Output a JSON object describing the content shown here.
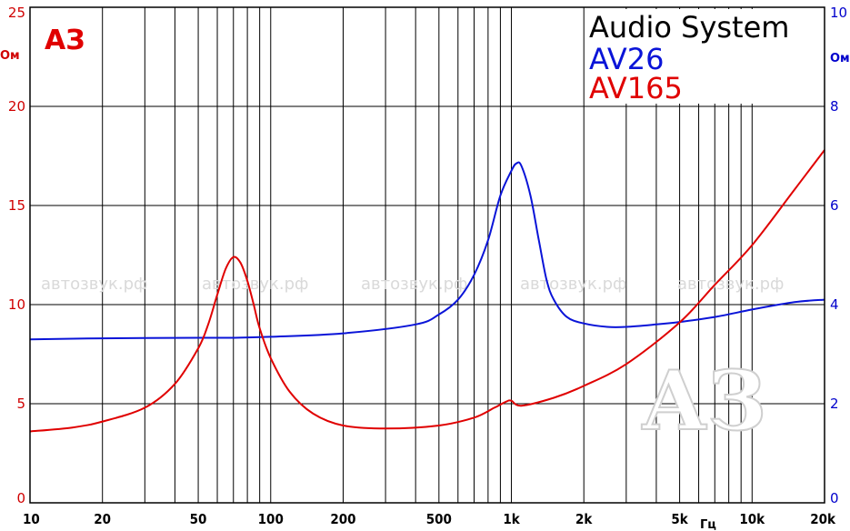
{
  "chart_data": {
    "type": "line",
    "title": "Audio System",
    "x_unit": "Гц",
    "x_scale": "log",
    "xlim": [
      10,
      20000
    ],
    "x_ticks": [
      "10",
      "20",
      "50",
      "100",
      "200",
      "500",
      "1k",
      "2k",
      "5k",
      "10k",
      "20k"
    ],
    "x_tick_values": [
      10,
      20,
      50,
      100,
      200,
      500,
      1000,
      2000,
      5000,
      10000,
      20000
    ],
    "y_left": {
      "unit": "Ом",
      "ylim": [
        0,
        25
      ],
      "ticks": [
        "0",
        "5",
        "10",
        "15",
        "20",
        "25"
      ],
      "color": "#d00000"
    },
    "y_right": {
      "unit": "Ом",
      "ylim": [
        0,
        10
      ],
      "ticks": [
        "0",
        "2",
        "4",
        "6",
        "8",
        "10"
      ],
      "color": "#0000cc"
    },
    "grid": true,
    "legend_position": "top-right",
    "series": [
      {
        "name": "AV26",
        "axis": "right",
        "color": "#0a14d8",
        "x": [
          10,
          20,
          50,
          70,
          100,
          200,
          400,
          500,
          600,
          700,
          800,
          900,
          1000,
          1050,
          1100,
          1200,
          1300,
          1400,
          1500,
          1700,
          2000,
          2500,
          3000,
          4000,
          5000,
          7000,
          10000,
          15000,
          20000
        ],
        "y": [
          3.3,
          3.32,
          3.33,
          3.33,
          3.35,
          3.42,
          3.6,
          3.8,
          4.1,
          4.6,
          5.3,
          6.2,
          6.7,
          6.85,
          6.8,
          6.2,
          5.3,
          4.5,
          4.1,
          3.75,
          3.62,
          3.55,
          3.55,
          3.6,
          3.65,
          3.75,
          3.9,
          4.05,
          4.1
        ]
      },
      {
        "name": "AV165",
        "axis": "left",
        "color": "#e00000",
        "x": [
          10,
          15,
          20,
          30,
          40,
          50,
          55,
          60,
          65,
          70,
          75,
          80,
          85,
          90,
          100,
          120,
          150,
          200,
          300,
          500,
          700,
          850,
          950,
          1000,
          1100,
          1500,
          2000,
          3000,
          5000,
          7000,
          10000,
          15000,
          20000
        ],
        "y": [
          3.6,
          3.8,
          4.1,
          4.8,
          6.0,
          7.8,
          9.0,
          10.5,
          11.8,
          12.4,
          12.1,
          11.2,
          10.0,
          8.8,
          7.3,
          5.6,
          4.5,
          3.9,
          3.75,
          3.9,
          4.3,
          4.8,
          5.1,
          5.15,
          4.9,
          5.3,
          5.9,
          7.0,
          9.1,
          11.0,
          13.0,
          15.8,
          17.8
        ]
      }
    ]
  },
  "watermarks": {
    "text": "автозвук.рф",
    "logo": "АЗ"
  }
}
